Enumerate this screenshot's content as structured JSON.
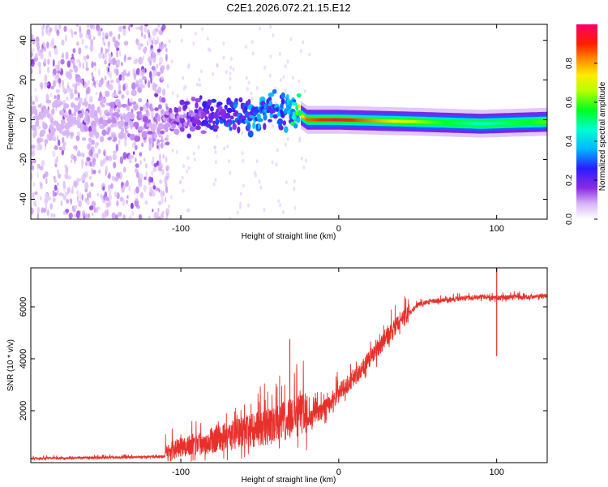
{
  "chart_data": [
    {
      "type": "heatmap",
      "title": "C2E1.2026.072.21.15.E12",
      "xlabel": "Height of straight line (km)",
      "ylabel": "Frequency (Hz)",
      "xlim": [
        -195,
        132
      ],
      "ylim": [
        -50,
        48
      ],
      "xticks": [
        -100,
        0,
        100
      ],
      "xtick_labels": [
        "-100",
        "0",
        "100"
      ],
      "yticks": [
        -40,
        -20,
        0,
        20,
        40
      ],
      "ytick_labels": [
        "-40",
        "-20",
        "0",
        "20",
        "40"
      ],
      "colorbar": {
        "label": "Normalized spectral amplitude",
        "range": [
          0,
          1
        ],
        "ticks": [
          0,
          0.2,
          0.4,
          0.6,
          0.8
        ],
        "tick_labels": [
          "0.0",
          "0.2",
          "0.4",
          "0.6",
          "0.8"
        ],
        "colormap": "rainbow"
      },
      "ridge": [
        {
          "x": -195,
          "freq": 0,
          "amp": 0.05
        },
        {
          "x": -110,
          "freq": 0,
          "amp": 0.12
        },
        {
          "x": -60,
          "freq": 3,
          "amp": 0.3
        },
        {
          "x": -30,
          "freq": 6,
          "amp": 0.35
        },
        {
          "x": -20,
          "freq": 0,
          "amp": 0.85
        },
        {
          "x": 0,
          "freq": 0,
          "amp": 0.95
        },
        {
          "x": 50,
          "freq": -1,
          "amp": 0.65
        },
        {
          "x": 90,
          "freq": -2,
          "amp": 0.45
        },
        {
          "x": 132,
          "freq": -1,
          "amp": 0.6
        }
      ]
    },
    {
      "type": "line",
      "xlabel": "Height of straight line (km)",
      "ylabel": "SNR (10 * v/v)",
      "xlim": [
        -195,
        132
      ],
      "ylim": [
        0,
        7500
      ],
      "xticks": [
        -100,
        0,
        100
      ],
      "xtick_labels": [
        "-100",
        "0",
        "100"
      ],
      "yticks": [
        2000,
        4000,
        6000
      ],
      "ytick_labels": [
        "2000",
        "4000",
        "6000"
      ],
      "color": "#e8302a",
      "series": [
        {
          "name": "SNR",
          "x": [
            -195,
            -150,
            -110,
            -100,
            -80,
            -60,
            -40,
            -30,
            -20,
            -10,
            0,
            10,
            20,
            30,
            40,
            50,
            60,
            70,
            80,
            90,
            100,
            110,
            120,
            132
          ],
          "y": [
            150,
            180,
            220,
            500,
            700,
            1000,
            1200,
            1500,
            1600,
            1900,
            2600,
            3200,
            3900,
            4700,
            5400,
            6050,
            6200,
            6250,
            6300,
            6350,
            6300,
            6350,
            6350,
            6400
          ]
        }
      ],
      "spikes": [
        {
          "x": -31,
          "y": 4750
        },
        {
          "x": 100,
          "y": 7500
        },
        {
          "x": 100,
          "y": 4100
        }
      ]
    }
  ]
}
